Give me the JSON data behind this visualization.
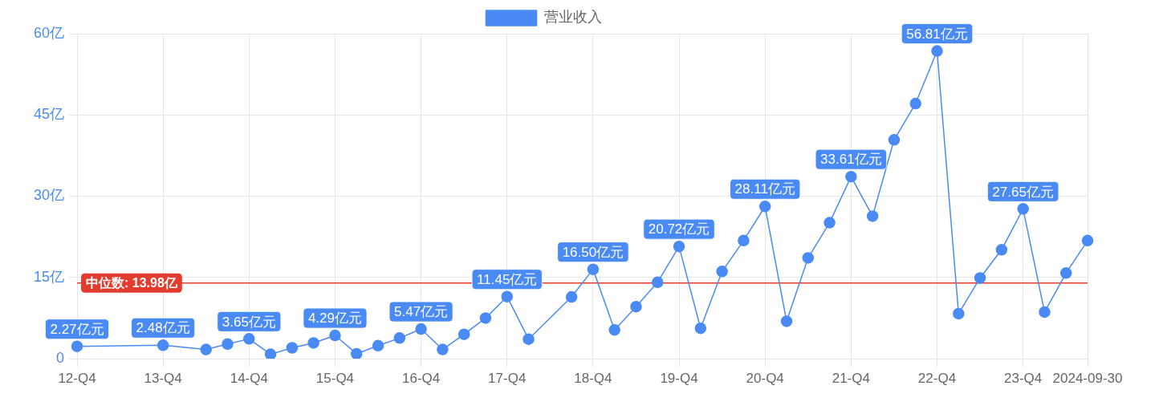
{
  "chart_data": {
    "type": "line",
    "categories": [
      "12-Q4",
      null,
      null,
      null,
      "13-Q4",
      null,
      null,
      null,
      "14-Q4",
      null,
      null,
      null,
      "15-Q4",
      null,
      null,
      null,
      "16-Q4",
      null,
      null,
      null,
      "17-Q4",
      null,
      null,
      null,
      "18-Q4",
      null,
      null,
      null,
      "19-Q4",
      null,
      null,
      null,
      "20-Q4",
      null,
      null,
      null,
      "21-Q4",
      null,
      null,
      null,
      "22-Q4",
      null,
      null,
      null,
      "23-Q4",
      null,
      null,
      "2024-09-30"
    ],
    "series": [
      {
        "name": "营业收入",
        "color": "#4a8af4",
        "values": [
          2.27,
          null,
          null,
          null,
          2.48,
          null,
          1.7,
          2.7,
          3.65,
          0.8,
          2.0,
          2.9,
          4.29,
          0.9,
          2.4,
          3.8,
          5.47,
          1.7,
          4.5,
          7.5,
          11.45,
          3.6,
          null,
          11.4,
          16.5,
          5.3,
          9.6,
          14.1,
          20.72,
          5.6,
          16.1,
          21.8,
          28.11,
          6.9,
          18.6,
          25.1,
          33.61,
          26.3,
          40.4,
          47.1,
          56.81,
          8.3,
          14.9,
          20.1,
          27.65,
          8.6,
          15.8,
          21.8
        ],
        "value_labels": [
          "2.27亿元",
          null,
          null,
          null,
          "2.48亿元",
          null,
          null,
          null,
          "3.65亿元",
          null,
          null,
          null,
          "4.29亿元",
          null,
          null,
          null,
          "5.47亿元",
          null,
          null,
          null,
          "11.45亿元",
          null,
          null,
          null,
          "16.50亿元",
          null,
          null,
          null,
          "20.72亿元",
          null,
          null,
          null,
          "28.11亿元",
          null,
          null,
          null,
          "33.61亿元",
          null,
          null,
          null,
          "56.81亿元",
          null,
          null,
          null,
          "27.65亿元",
          null,
          null,
          null
        ]
      }
    ],
    "ylim": [
      0,
      60
    ],
    "yticks": [
      0,
      {
        "value": 15,
        "label": "15亿"
      },
      {
        "value": 30,
        "label": "30亿"
      },
      {
        "value": 45,
        "label": "45亿"
      },
      {
        "value": 60,
        "label": "60亿"
      }
    ],
    "ref_lines": [
      {
        "axis": "y",
        "value": 13.98,
        "label": "中位数: 13.98亿",
        "color": "#e33b2e"
      }
    ],
    "grid": true,
    "legend": "top",
    "marker": "circle",
    "line_style": "solid"
  }
}
